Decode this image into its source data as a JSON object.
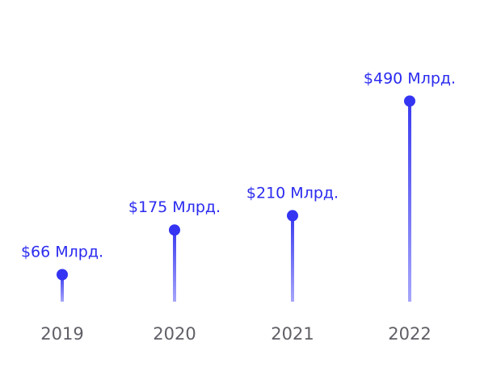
{
  "chart_data": {
    "type": "bar",
    "categories": [
      "2019",
      "2020",
      "2021",
      "2022"
    ],
    "values": [
      66,
      175,
      210,
      490
    ],
    "data_labels": [
      "$66 Млрд.",
      "$175 Млрд.",
      "$210 Млрд.",
      "$490 Млрд."
    ],
    "title": "",
    "xlabel": "",
    "ylabel": "",
    "grid": false,
    "legend": "none",
    "colors": {
      "stem_top": "#3b3bf0",
      "stem_bottom": "#a6a6fb",
      "marker": "#3434f2",
      "value_label": "#2b2bf0",
      "year_label": "#5f5f66"
    }
  }
}
